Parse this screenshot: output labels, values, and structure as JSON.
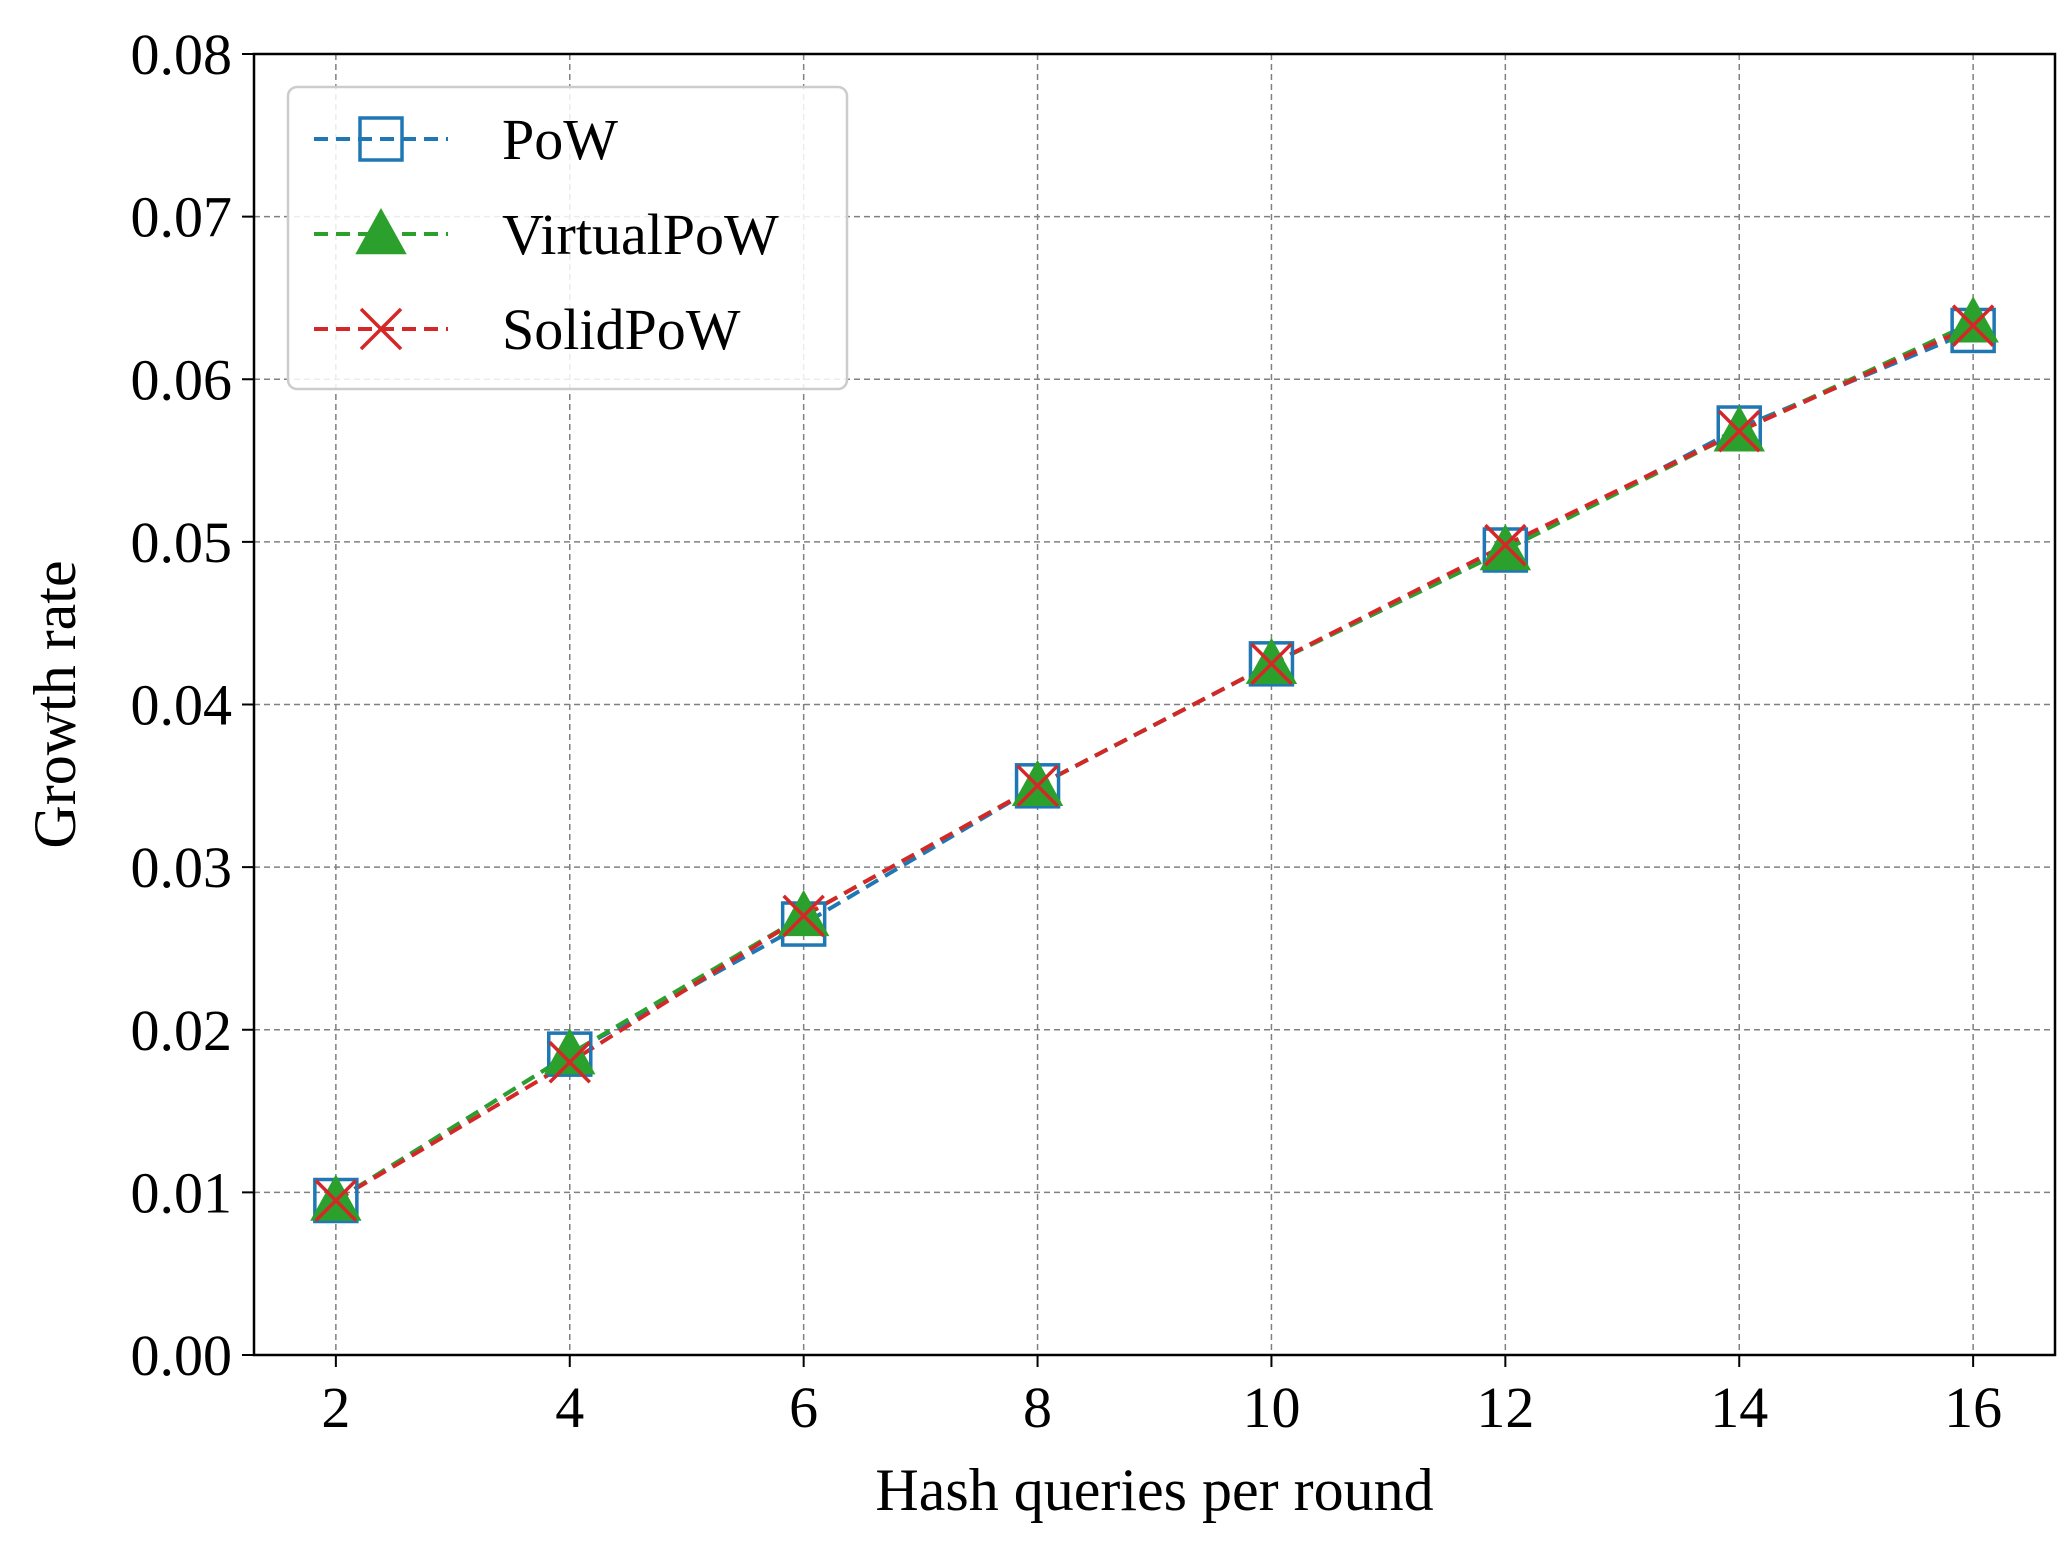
{
  "chart_data": {
    "type": "line",
    "title": "",
    "xlabel": "Hash queries per round",
    "ylabel": "Growth rate",
    "x": [
      2,
      4,
      6,
      8,
      10,
      12,
      14,
      16
    ],
    "xticks": [
      "2",
      "4",
      "6",
      "8",
      "10",
      "12",
      "14",
      "16"
    ],
    "yticks": [
      "0.00",
      "0.01",
      "0.02",
      "0.03",
      "0.04",
      "0.05",
      "0.06",
      "0.07",
      "0.08"
    ],
    "xlim": [
      1.3,
      16.7
    ],
    "ylim": [
      0,
      0.08
    ],
    "grid": true,
    "legend_position": "top-left",
    "series": [
      {
        "name": "PoW",
        "color": "#1f77b4",
        "marker": "square-open",
        "linestyle": "dashed",
        "values": [
          0.0095,
          0.0185,
          0.0265,
          0.035,
          0.0425,
          0.0495,
          0.057,
          0.063
        ]
      },
      {
        "name": "VirtualPoW",
        "color": "#2ca02c",
        "marker": "triangle-filled",
        "linestyle": "dashed",
        "values": [
          0.0095,
          0.0185,
          0.027,
          0.035,
          0.0425,
          0.0495,
          0.0568,
          0.0635
        ]
      },
      {
        "name": "SolidPoW",
        "color": "#d62728",
        "marker": "x",
        "linestyle": "dashed",
        "values": [
          0.0095,
          0.018,
          0.027,
          0.035,
          0.0425,
          0.0498,
          0.0568,
          0.0633
        ]
      }
    ]
  }
}
